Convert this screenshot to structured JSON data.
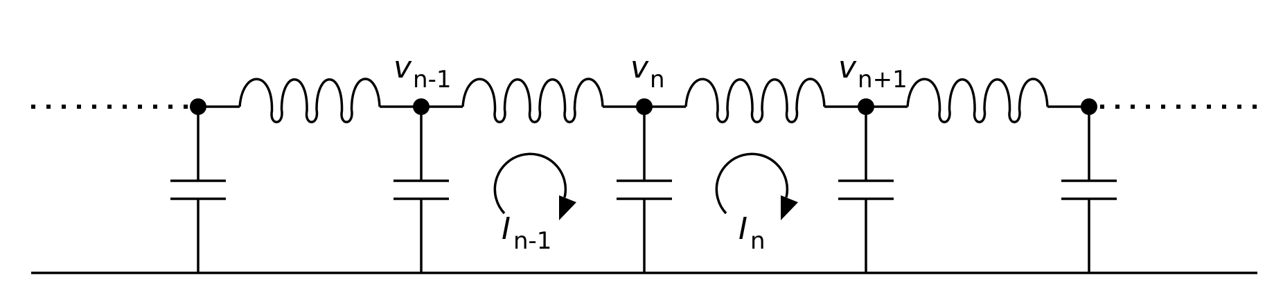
{
  "diagram": {
    "node_voltages": [
      {
        "symbol": "v",
        "subscript": "n-1"
      },
      {
        "symbol": "v",
        "subscript": "n"
      },
      {
        "symbol": "v",
        "subscript": "n+1"
      }
    ],
    "loop_currents": [
      {
        "symbol": "I",
        "subscript": "n-1"
      },
      {
        "symbol": "I",
        "subscript": "n"
      }
    ],
    "colors": {
      "stroke": "#000000",
      "background": "#ffffff"
    }
  }
}
